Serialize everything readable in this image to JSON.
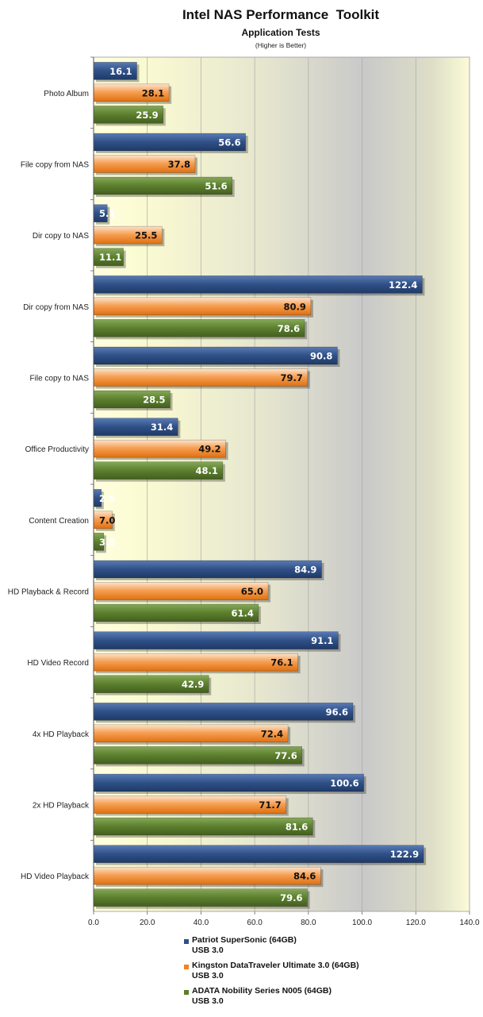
{
  "chart_data": {
    "type": "bar",
    "orientation": "horizontal",
    "title": "Intel NAS Performance  Toolkit",
    "subtitle": "Application Tests",
    "note": "(Higher is Better)",
    "categories": [
      "Photo Album",
      "File copy from NAS",
      "Dir copy to NAS",
      "Dir copy from NAS",
      "File copy to NAS",
      "Office Productivity",
      "Content Creation",
      "HD Playback & Record",
      "HD Video Record",
      "4x HD Playback",
      "2x HD Playback",
      "HD Video Playback"
    ],
    "series": [
      {
        "name": "Patriot SuperSonic (64GB)",
        "sub": "USB 3.0",
        "color": "#2f5087",
        "label_color": "#ffffff",
        "values": [
          16.1,
          56.6,
          5.1,
          122.4,
          90.8,
          31.4,
          2.9,
          84.9,
          91.1,
          96.6,
          100.6,
          122.9
        ]
      },
      {
        "name": "Kingston DataTraveler Ultimate 3.0 (64GB)",
        "sub": "USB 3.0",
        "color": "#f08222",
        "label_color": "#111111",
        "values": [
          28.1,
          37.8,
          25.5,
          80.9,
          79.7,
          49.2,
          7.0,
          65.0,
          76.1,
          72.4,
          71.7,
          84.6
        ]
      },
      {
        "name": "ADATA Nobility Series N005 (64GB)",
        "sub": "USB 3.0",
        "color": "#5b7f2d",
        "label_color": "#ffffff",
        "values": [
          25.9,
          51.6,
          11.1,
          78.6,
          28.5,
          48.1,
          3.8,
          61.4,
          42.9,
          77.6,
          81.6,
          79.6
        ]
      }
    ],
    "xlim": [
      0,
      140
    ],
    "xticks": [
      "0.0",
      "20.0",
      "40.0",
      "60.0",
      "80.0",
      "100.0",
      "120.0",
      "140.0"
    ],
    "grid": true,
    "legend_position": "bottom-right"
  }
}
